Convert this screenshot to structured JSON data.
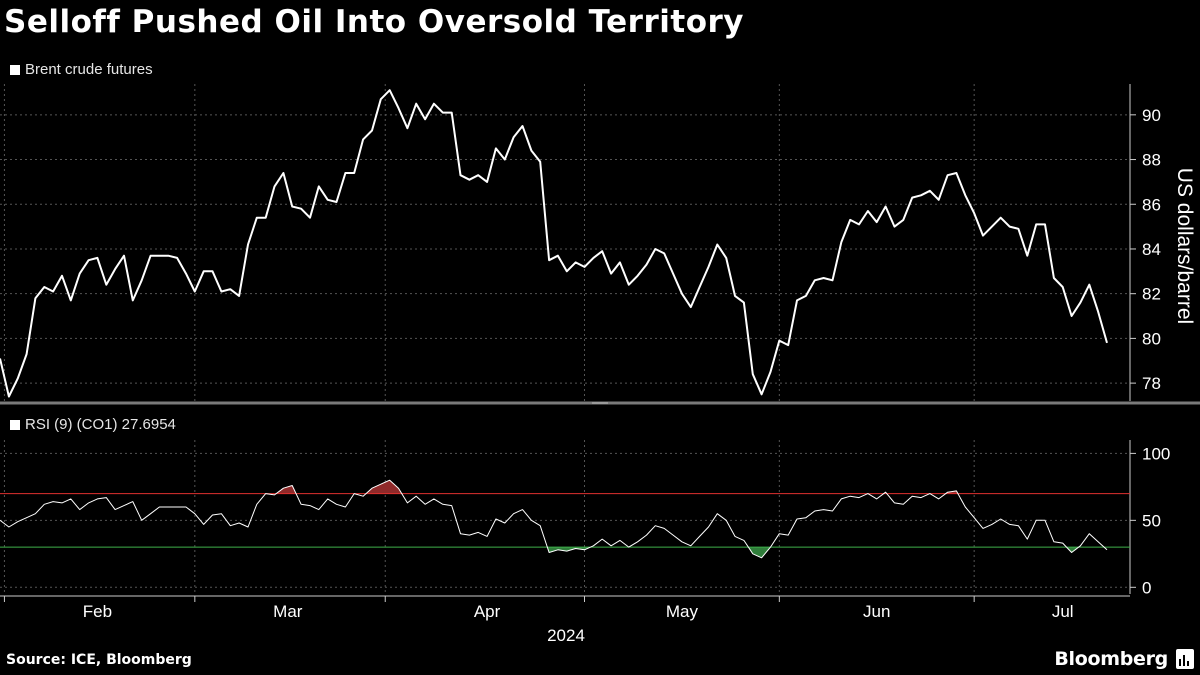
{
  "title": "Selloff Pushed Oil Into Oversold Territory",
  "source": "Source: ICE, Bloomberg",
  "brand": "Bloomberg",
  "brand_icon": "bloomberg-terminal-icon",
  "colors": {
    "background": "#000000",
    "line": "#ffffff",
    "overbought": "#e0312f",
    "oversold": "#3fb04a",
    "overbought_fill": "#8f2a2a",
    "oversold_fill": "#2f7d3a",
    "grid": "#555555"
  },
  "chart_data": [
    {
      "type": "line",
      "legend": "Brent crude futures",
      "ylabel": "US dollars/barrel",
      "ylim": [
        77.2,
        91.2
      ],
      "yticks": [
        78,
        80,
        82,
        84,
        86,
        88,
        90
      ],
      "grid": true,
      "legend_position": "top-left",
      "values": [
        79.1,
        77.4,
        78.2,
        79.3,
        81.8,
        82.3,
        82.1,
        82.8,
        81.7,
        82.9,
        83.5,
        83.6,
        82.4,
        83.1,
        83.7,
        81.7,
        82.6,
        83.7,
        83.7,
        83.7,
        83.6,
        82.9,
        82.1,
        83.0,
        83.0,
        82.1,
        82.2,
        81.9,
        84.2,
        85.4,
        85.4,
        86.8,
        87.4,
        85.9,
        85.8,
        85.4,
        86.8,
        86.2,
        86.1,
        87.4,
        87.4,
        88.9,
        89.3,
        90.7,
        91.1,
        90.3,
        89.4,
        90.5,
        89.8,
        90.5,
        90.1,
        90.1,
        87.3,
        87.1,
        87.3,
        87.0,
        88.5,
        88.0,
        89.0,
        89.5,
        88.4,
        87.9,
        83.5,
        83.7,
        83.0,
        83.4,
        83.2,
        83.6,
        83.9,
        82.9,
        83.4,
        82.4,
        82.8,
        83.3,
        84.0,
        83.8,
        82.9,
        82.0,
        81.4,
        82.3,
        83.2,
        84.2,
        83.6,
        81.9,
        81.6,
        78.4,
        77.5,
        78.5,
        79.9,
        79.7,
        81.7,
        81.9,
        82.6,
        82.7,
        82.6,
        84.3,
        85.3,
        85.1,
        85.7,
        85.2,
        85.9,
        85.0,
        85.3,
        86.3,
        86.4,
        86.6,
        86.2,
        87.3,
        87.4,
        86.4,
        85.6,
        84.6,
        85.0,
        85.4,
        85.0,
        84.9,
        83.7,
        85.1,
        85.1,
        82.7,
        82.3,
        81.0,
        81.6,
        82.4,
        81.2,
        79.8
      ]
    },
    {
      "type": "line",
      "legend": "RSI (9) (CO1) 27.6954",
      "ylim": [
        -5,
        110
      ],
      "yticks": [
        0,
        50,
        100
      ],
      "grid": true,
      "legend_position": "top-left",
      "thresholds": {
        "overbought": 70,
        "oversold": 30
      },
      "values": [
        50,
        45,
        49,
        52,
        55,
        62,
        64,
        63,
        66,
        58,
        63,
        66,
        67,
        58,
        61,
        64,
        50,
        55,
        60,
        60,
        60,
        60,
        55,
        47,
        54,
        55,
        46,
        48,
        45,
        62,
        70,
        69,
        74,
        76,
        62,
        61,
        58,
        66,
        62,
        60,
        70,
        68,
        74,
        77,
        80,
        74,
        63,
        68,
        62,
        66,
        62,
        61,
        40,
        39,
        41,
        38,
        51,
        48,
        55,
        58,
        50,
        46,
        26,
        28,
        27,
        29,
        28,
        31,
        36,
        31,
        35,
        30,
        34,
        39,
        46,
        44,
        39,
        34,
        31,
        38,
        45,
        55,
        50,
        38,
        35,
        25,
        22,
        30,
        40,
        39,
        51,
        52,
        57,
        58,
        57,
        66,
        68,
        67,
        70,
        66,
        71,
        63,
        62,
        68,
        67,
        70,
        66,
        71,
        72,
        60,
        52,
        44,
        47,
        51,
        47,
        46,
        36,
        50,
        50,
        34,
        33,
        26,
        31,
        40,
        34,
        28
      ],
      "xlabel": "2024",
      "month_labels": [
        "Feb",
        "Mar",
        "Apr",
        "May",
        "Jun",
        "Jul"
      ]
    }
  ]
}
